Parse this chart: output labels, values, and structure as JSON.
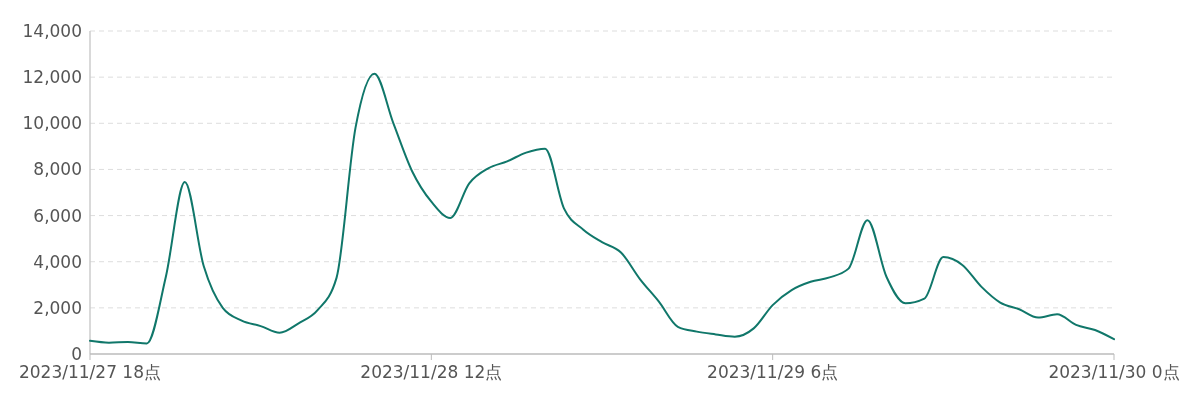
{
  "chart_data": {
    "type": "line",
    "x": [
      "2023-11-27T18:00",
      "2023-11-27T19:00",
      "2023-11-27T20:00",
      "2023-11-27T21:00",
      "2023-11-27T22:00",
      "2023-11-27T23:00",
      "2023-11-28T00:00",
      "2023-11-28T01:00",
      "2023-11-28T02:00",
      "2023-11-28T03:00",
      "2023-11-28T04:00",
      "2023-11-28T05:00",
      "2023-11-28T06:00",
      "2023-11-28T07:00",
      "2023-11-28T08:00",
      "2023-11-28T09:00",
      "2023-11-28T10:00",
      "2023-11-28T11:00",
      "2023-11-28T12:00",
      "2023-11-28T13:00",
      "2023-11-28T14:00",
      "2023-11-28T15:00",
      "2023-11-28T16:00",
      "2023-11-28T17:00",
      "2023-11-28T18:00",
      "2023-11-28T19:00",
      "2023-11-28T20:00",
      "2023-11-28T21:00",
      "2023-11-28T22:00",
      "2023-11-28T23:00",
      "2023-11-29T00:00",
      "2023-11-29T01:00",
      "2023-11-29T02:00",
      "2023-11-29T03:00",
      "2023-11-29T04:00",
      "2023-11-29T05:00",
      "2023-11-29T06:00",
      "2023-11-29T07:00",
      "2023-11-29T08:00",
      "2023-11-29T09:00",
      "2023-11-29T10:00",
      "2023-11-29T11:00",
      "2023-11-29T12:00",
      "2023-11-29T13:00",
      "2023-11-29T14:00",
      "2023-11-29T15:00",
      "2023-11-29T16:00",
      "2023-11-29T17:00",
      "2023-11-29T18:00",
      "2023-11-29T19:00",
      "2023-11-29T20:00",
      "2023-11-29T21:00",
      "2023-11-29T22:00",
      "2023-11-29T23:00",
      "2023-11-30T00:00"
    ],
    "series": [
      {
        "color": "#10776a",
        "values": [
          570,
          490,
          520,
          460,
          3350,
          7450,
          3800,
          2000,
          1450,
          1210,
          920,
          1330,
          1900,
          3300,
          9800,
          12150,
          10000,
          7900,
          6600,
          5900,
          7400,
          8050,
          8350,
          8730,
          8900,
          6300,
          5400,
          4850,
          4400,
          3250,
          2270,
          1180,
          970,
          850,
          750,
          1110,
          2120,
          2770,
          3130,
          3320,
          3700,
          5800,
          3350,
          2200,
          2400,
          4200,
          3860,
          2920,
          2230,
          1940,
          1580,
          1720,
          1260,
          1040,
          640
        ]
      }
    ],
    "xlim": [
      "2023-11-27T18:00",
      "2023-11-30T00:00"
    ],
    "xticks": [
      {
        "value": "2023-11-27T18:00",
        "label": "2023/11/27 18点"
      },
      {
        "value": "2023-11-28T12:00",
        "label": "2023/11/28 12点"
      },
      {
        "value": "2023-11-29T06:00",
        "label": "2023/11/29 6点"
      },
      {
        "value": "2023-11-30T00:00",
        "label": "2023/11/30 0点"
      }
    ],
    "ylim": [
      0,
      14000
    ],
    "yticks": [
      0,
      {
        "value": 2000,
        "label": "2,000"
      },
      {
        "value": 4000,
        "label": "4,000"
      },
      {
        "value": 6000,
        "label": "6,000"
      },
      {
        "value": 8000,
        "label": "8,000"
      },
      {
        "value": 10000,
        "label": "10,000"
      },
      {
        "value": 12000,
        "label": "12,000"
      },
      {
        "value": 14000,
        "label": "14,000"
      }
    ],
    "grid": "y"
  }
}
